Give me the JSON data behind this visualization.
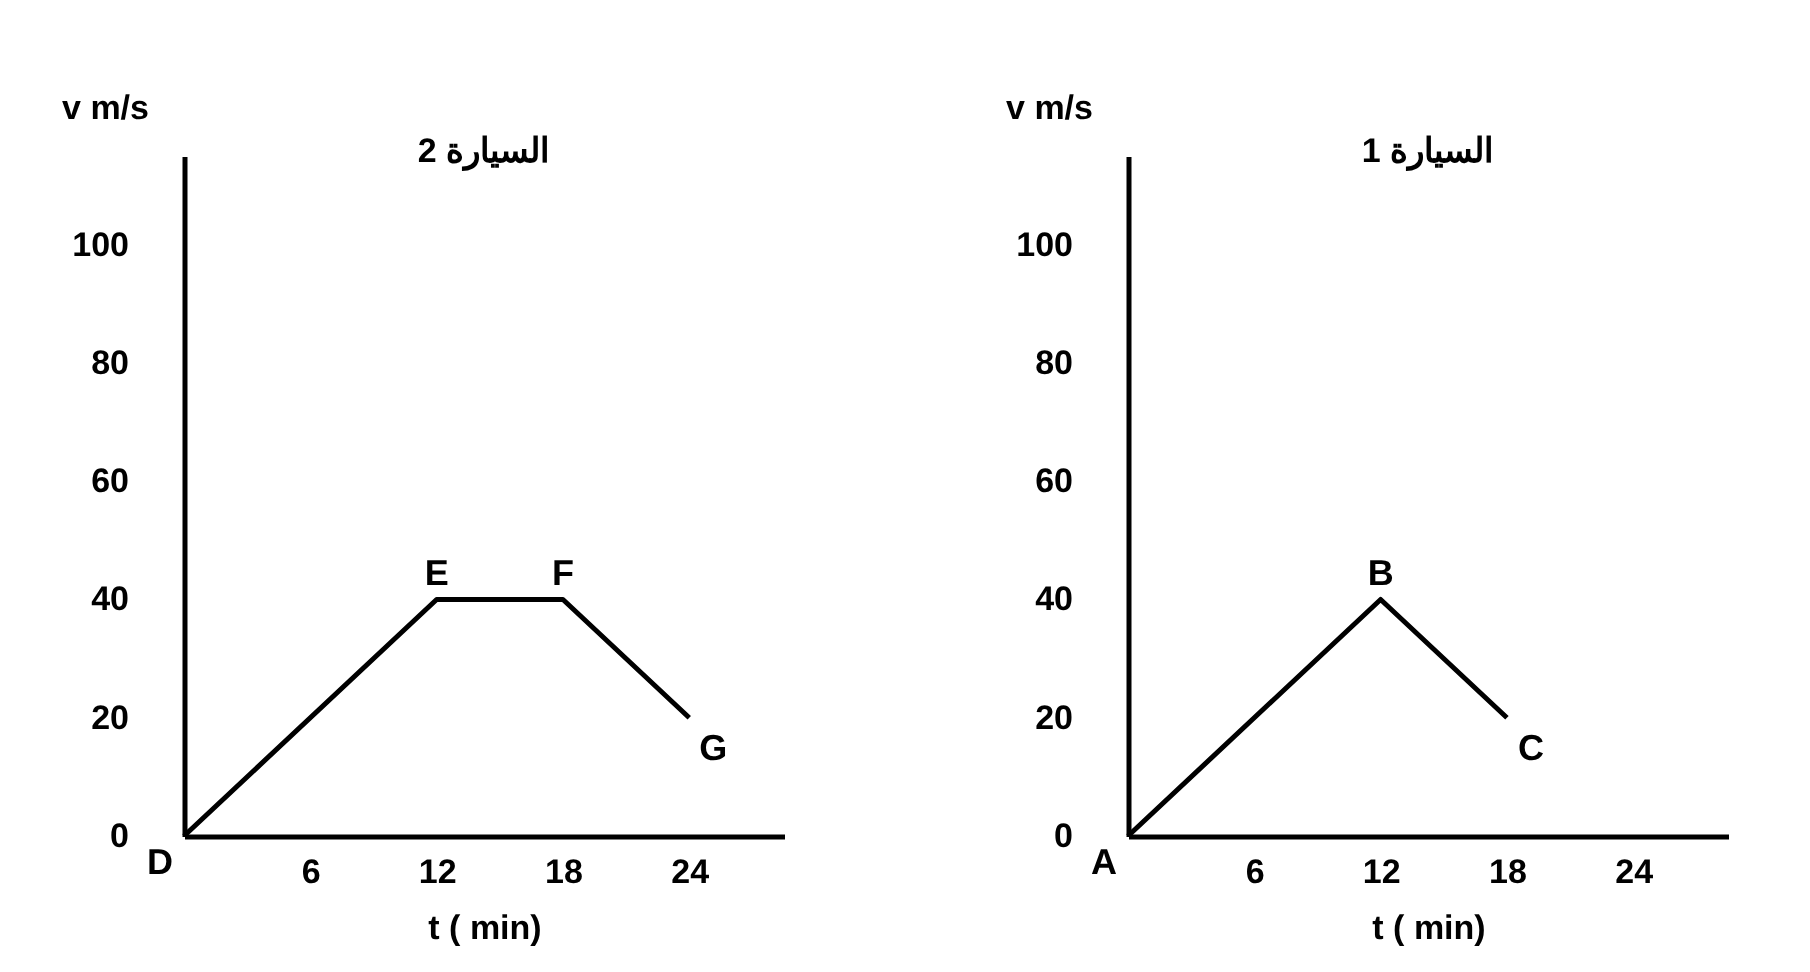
{
  "chart_data": [
    {
      "type": "line",
      "title": "السيارة 2",
      "xlabel": "t ( min)",
      "ylabel": "v m/s",
      "x": [
        0,
        12,
        18,
        24
      ],
      "values": [
        0,
        40,
        40,
        20
      ],
      "color": "#000000",
      "xlim": [
        0,
        28.5
      ],
      "ylim": [
        0,
        115
      ],
      "xticks": [
        6,
        12,
        18,
        24
      ],
      "yticks": [
        0,
        20,
        40,
        60,
        80,
        100
      ],
      "grid": false,
      "marker": "none",
      "annotations": [
        {
          "text": "D",
          "x": 0,
          "y": 0
        },
        {
          "text": "E",
          "x": 12,
          "y": 40
        },
        {
          "text": "F",
          "x": 18,
          "y": 40
        },
        {
          "text": "G",
          "x": 24,
          "y": 20
        }
      ]
    },
    {
      "type": "line",
      "title": "السيارة 1",
      "xlabel": "t ( min)",
      "ylabel": "v m/s",
      "x": [
        0,
        12,
        18
      ],
      "values": [
        0,
        40,
        20
      ],
      "color": "#000000",
      "xlim": [
        0,
        28.5
      ],
      "ylim": [
        0,
        115
      ],
      "xticks": [
        6,
        12,
        18,
        24
      ],
      "yticks": [
        0,
        20,
        40,
        60,
        80,
        100
      ],
      "grid": false,
      "marker": "none",
      "annotations": [
        {
          "text": "A",
          "x": 0,
          "y": 0
        },
        {
          "text": "B",
          "x": 12,
          "y": 40
        },
        {
          "text": "C",
          "x": 18,
          "y": 20
        }
      ]
    }
  ]
}
